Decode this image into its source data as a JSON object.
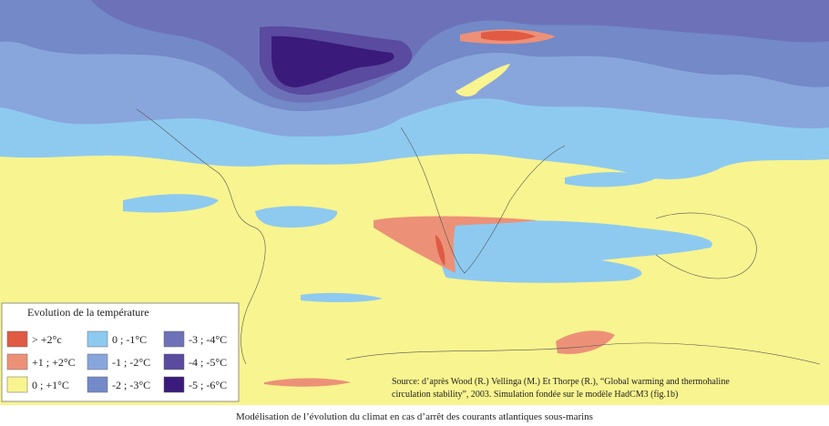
{
  "legend": {
    "title": "Evolution de la température",
    "items": [
      {
        "label": "> +2°c",
        "color": "#e05a44"
      },
      {
        "label": "+1 ; +2°C",
        "color": "#ec9177"
      },
      {
        "label": "0 ; +1°C",
        "color": "#f8f48f"
      },
      {
        "label": "0 ; -1°C",
        "color": "#8ecaf0"
      },
      {
        "label": "-1 ; -2°C",
        "color": "#88a6dc"
      },
      {
        "label": "-2 ; -3°C",
        "color": "#7389c8"
      },
      {
        "label": "-3 ; -4°C",
        "color": "#6d72b8"
      },
      {
        "label": "-4 ; -5°C",
        "color": "#5a4aa0"
      },
      {
        "label": "-5 ; -6°C",
        "color": "#3a1a7a"
      }
    ]
  },
  "source": [
    "Source: d’après Wood (R.) Vellinga (M.) Et Thorpe (R.), “Global warming and thermohaline",
    "circulation stability”, 2003. Simulation fondée sur le modèle HadCM3 (fig.1b)"
  ],
  "caption": "Modélisation de l’évolution du climat en cas d’arrêt des courants atlantiques sous-marins"
}
